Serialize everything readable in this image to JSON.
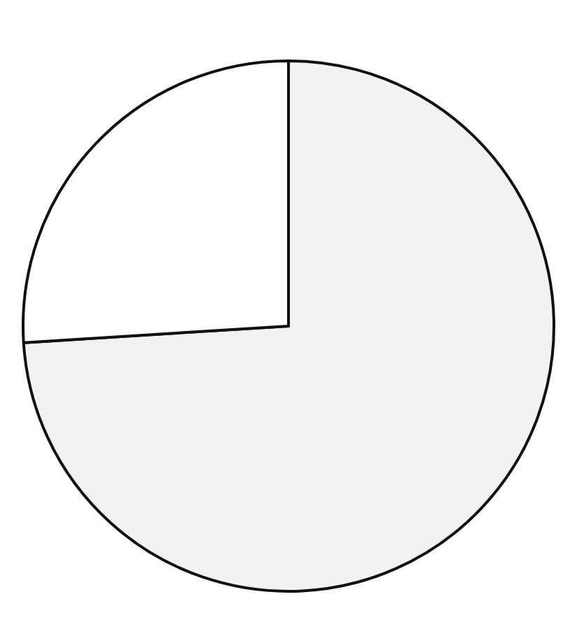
{
  "chart_data": {
    "type": "pie",
    "categories": [
      null,
      null
    ],
    "values": [
      74,
      26
    ],
    "colors": [
      "#f2f2f2",
      "#ffffff"
    ]
  }
}
